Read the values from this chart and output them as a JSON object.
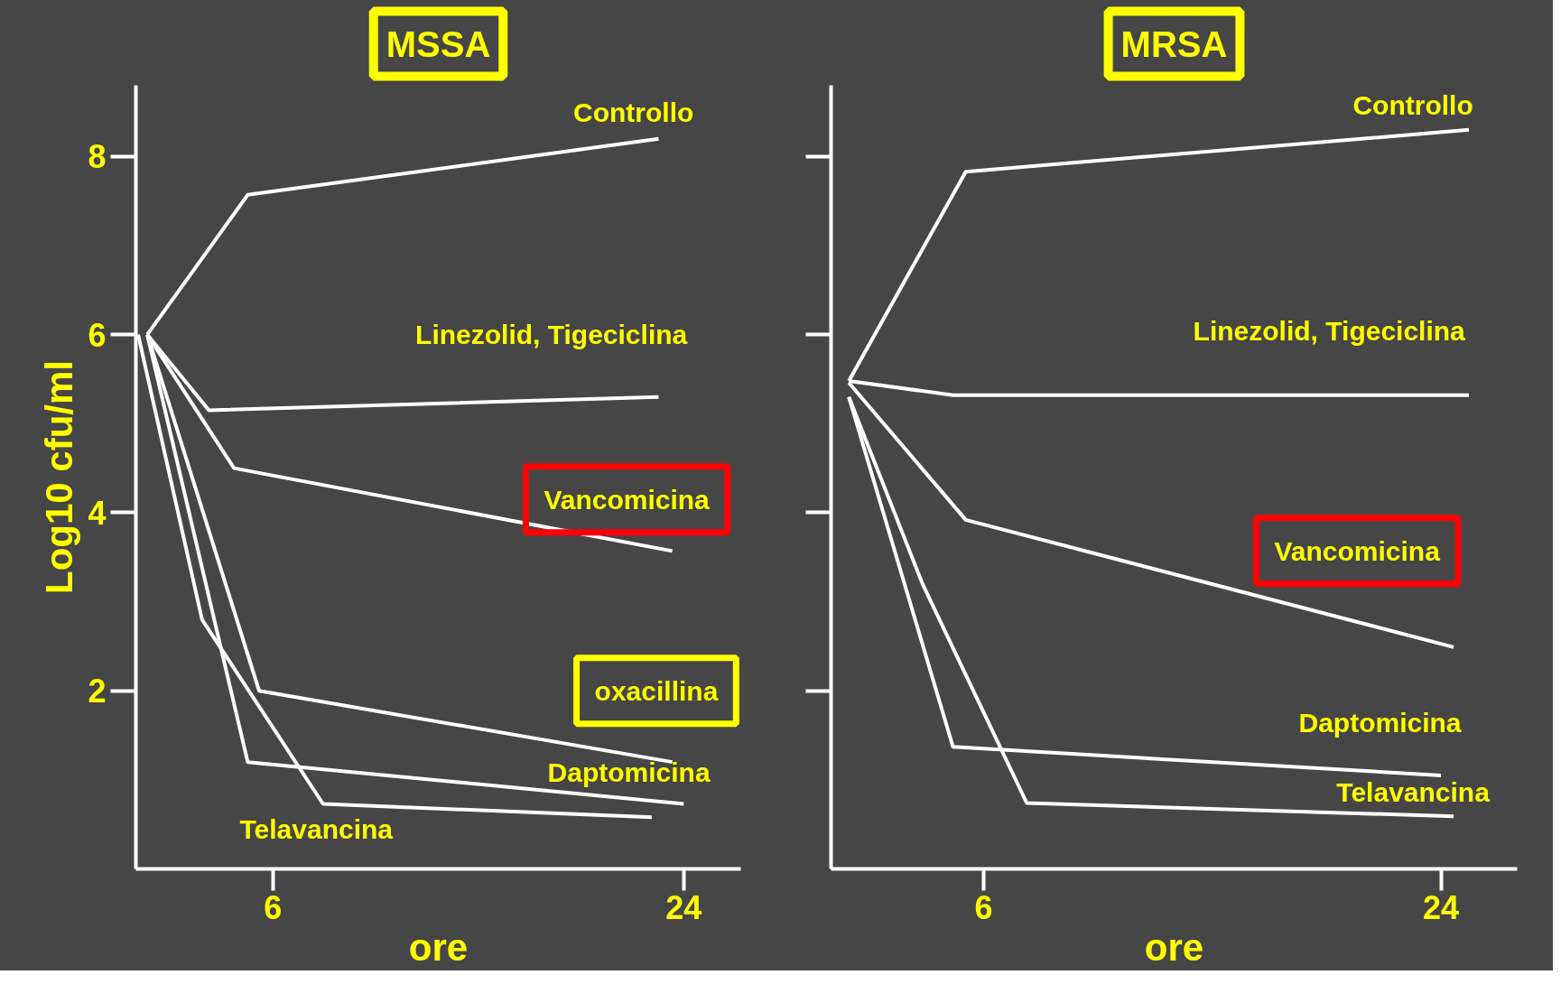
{
  "chart_data": [
    {
      "type": "line",
      "title": "MSSA",
      "xlabel": "ore",
      "ylabel": "Log10 cfu/ml",
      "xlim": [
        0,
        26.5
      ],
      "ylim": [
        0,
        8.8
      ],
      "xticks": [
        6,
        24
      ],
      "yticks": [
        2,
        4,
        6,
        8
      ],
      "grid": false,
      "marker": "none",
      "line_style": "solid",
      "series": [
        {
          "name": "Controllo",
          "color": "#ffffff",
          "x": [
            0.5,
            4.9,
            22.9
          ],
          "values": [
            6,
            7.57,
            8.2
          ]
        },
        {
          "name": "Linezolid, Tigeciclina",
          "color": "#ffffff",
          "x": [
            0.5,
            3.2,
            22.9
          ],
          "values": [
            6,
            5.15,
            5.3
          ]
        },
        {
          "name": "Vancomicina",
          "color": "#ffffff",
          "x": [
            0.5,
            4.3,
            23.5
          ],
          "values": [
            6,
            4.5,
            3.57
          ]
        },
        {
          "name": "oxacillina",
          "color": "#ffffff",
          "x": [
            0.5,
            5.4,
            23.5
          ],
          "values": [
            6,
            2.0,
            1.2
          ]
        },
        {
          "name": "Daptomicina",
          "color": "#ffffff",
          "x": [
            0.5,
            4.9,
            24
          ],
          "values": [
            6,
            1.2,
            0.73
          ]
        },
        {
          "name": "Telavancina",
          "color": "#ffffff",
          "x": [
            0.1,
            2.9,
            8.2,
            22.6
          ],
          "values": [
            6,
            2.8,
            0.73,
            0.58
          ]
        }
      ]
    },
    {
      "type": "line",
      "title": "MRSA",
      "xlabel": "ore",
      "xlim": [
        0,
        27
      ],
      "ylim": [
        0,
        8.8
      ],
      "xticks": [
        6,
        24
      ],
      "yticks": [
        {
          "value": 2,
          "label": null
        },
        {
          "value": 4,
          "label": null
        },
        {
          "value": 6,
          "label": null
        },
        {
          "value": 8,
          "label": null
        }
      ],
      "tick_labels": "x",
      "grid": false,
      "marker": "none",
      "line_style": "solid",
      "series": [
        {
          "name": "Controllo",
          "color": "#ffffff",
          "x": [
            0.7,
            5.3,
            25.1
          ],
          "values": [
            5.48,
            7.83,
            8.3
          ]
        },
        {
          "name": "Linezolid, Tigeciclina",
          "color": "#ffffff",
          "x": [
            0.7,
            4.8,
            25.1
          ],
          "values": [
            5.48,
            5.32,
            5.32
          ]
        },
        {
          "name": "Vancomicina",
          "color": "#ffffff",
          "x": [
            0.7,
            5.3,
            24.5
          ],
          "values": [
            5.46,
            3.92,
            2.49
          ]
        },
        {
          "name": "Daptomicina",
          "color": "#ffffff",
          "x": [
            0.7,
            4.8,
            24
          ],
          "values": [
            5.3,
            1.37,
            1.05
          ]
        },
        {
          "name": "Telavancina",
          "color": "#ffffff",
          "x": [
            0.7,
            3.6,
            7.7,
            24.5
          ],
          "values": [
            5.3,
            3.2,
            0.74,
            0.59
          ]
        }
      ]
    }
  ]
}
